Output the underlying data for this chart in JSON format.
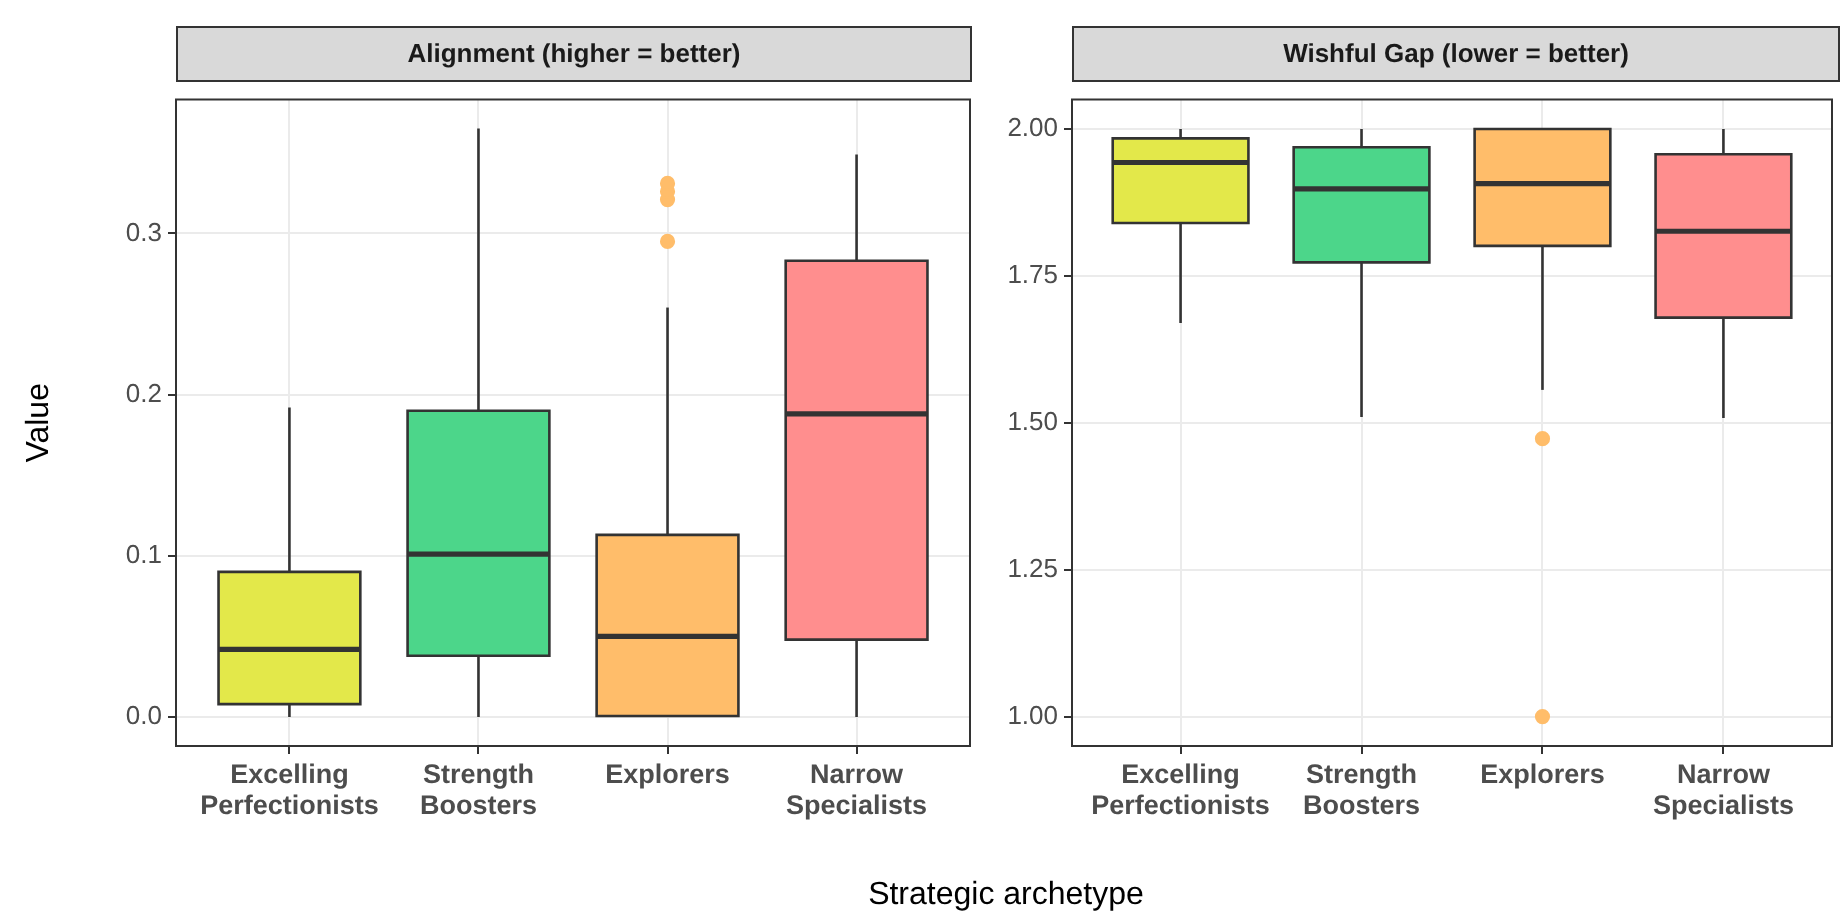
{
  "chart_data": [
    {
      "type": "box",
      "title": "Alignment (higher = better)",
      "ylabel": "Value",
      "xlabel": "Strategic archetype",
      "categories": [
        "Excelling Perfectionists",
        "Strength Boosters",
        "Explorers",
        "Narrow Specialists"
      ],
      "colors": [
        "#e3e84a",
        "#4cd68a",
        "#ffbd6a",
        "#ff8e8e"
      ],
      "boxes": [
        {
          "low": 0,
          "q1": 0.008,
          "median": 0.042,
          "q3": 0.09,
          "high": 0.192
        },
        {
          "low": 0,
          "q1": 0.038,
          "median": 0.101,
          "q3": 0.19,
          "high": 0.365
        },
        {
          "low": 0,
          "q1": 0,
          "median": 0.05,
          "q3": 0.113,
          "high": 0.254,
          "outliers": [
            0.295,
            0.321,
            0.326,
            0.331
          ]
        },
        {
          "low": 0,
          "q1": 0.048,
          "median": 0.188,
          "q3": 0.283,
          "high": 0.349
        }
      ],
      "ylim": [
        -0.018,
        0.383
      ],
      "yticks": [
        {
          "value": 0,
          "label": "0.0"
        },
        0.1,
        0.2,
        0.3
      ],
      "grid": true
    },
    {
      "type": "box",
      "title": "Wishful Gap (lower = better)",
      "categories": [
        "Excelling Perfectionists",
        "Strength Boosters",
        "Explorers",
        "Narrow Specialists"
      ],
      "colors": [
        "#e3e84a",
        "#4cd68a",
        "#ffbd6a",
        "#ff8e8e"
      ],
      "boxes": [
        {
          "low": 1.67,
          "q1": 1.84,
          "median": 1.943,
          "q3": 1.984,
          "high": 2.0
        },
        {
          "low": 1.51,
          "q1": 1.773,
          "median": 1.898,
          "q3": 1.969,
          "high": 2.0
        },
        {
          "low": 1.556,
          "q1": 1.801,
          "median": 1.907,
          "q3": 2.0,
          "high": 2.0,
          "outliers": [
            1.473,
            1.0
          ]
        },
        {
          "low": 1.508,
          "q1": 1.679,
          "median": 1.826,
          "q3": 1.957,
          "high": 2.0
        }
      ],
      "ylim": [
        0.95,
        2.05
      ],
      "yticks": [
        {
          "value": 1,
          "label": "1.00"
        },
        1.25,
        {
          "value": 1.5,
          "label": "1.50"
        },
        1.75,
        {
          "value": 2,
          "label": "2.00"
        }
      ],
      "grid": true
    }
  ]
}
